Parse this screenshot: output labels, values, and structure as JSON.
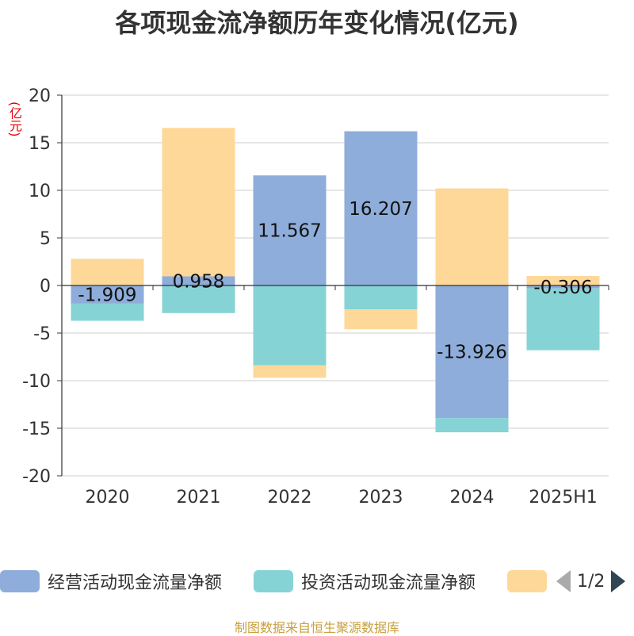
{
  "title": "各项现金流净额历年变化情况(亿元)",
  "unit": "(亿元)",
  "legend": {
    "items": [
      {
        "label": "经营活动现金流量净额",
        "color": "#8eadda"
      },
      {
        "label": "投资活动现金流量净额",
        "color": "#86d3d6"
      },
      {
        "label": "",
        "color": "#fed898"
      }
    ],
    "page_indicator": "1/2"
  },
  "source": "制图数据来自恒生聚源数据库",
  "chart_data": {
    "type": "bar",
    "stacked": true,
    "categories": [
      "2020",
      "2021",
      "2022",
      "2023",
      "2024",
      "2025H1"
    ],
    "ylim": [
      -20,
      20
    ],
    "yticks": [
      20,
      15,
      10,
      5,
      0,
      -5,
      -10,
      -15,
      -20
    ],
    "grid": true,
    "series": [
      {
        "name": "经营活动现金流量净额",
        "color": "#8eadda",
        "values": [
          -1.909,
          0.958,
          11.567,
          16.207,
          -13.926,
          -0.306
        ],
        "labels": [
          "-1.909",
          "0.958",
          "11.567",
          "16.207",
          "-13.926",
          "-0.306"
        ]
      },
      {
        "name": "投资活动现金流量净额",
        "color": "#86d3d6",
        "values": [
          -1.8,
          -2.9,
          -8.4,
          -2.5,
          -1.5,
          -6.5
        ]
      },
      {
        "color": "#fed898",
        "values": [
          2.8,
          15.6,
          -1.3,
          -2.1,
          10.2,
          1.0
        ]
      }
    ]
  }
}
